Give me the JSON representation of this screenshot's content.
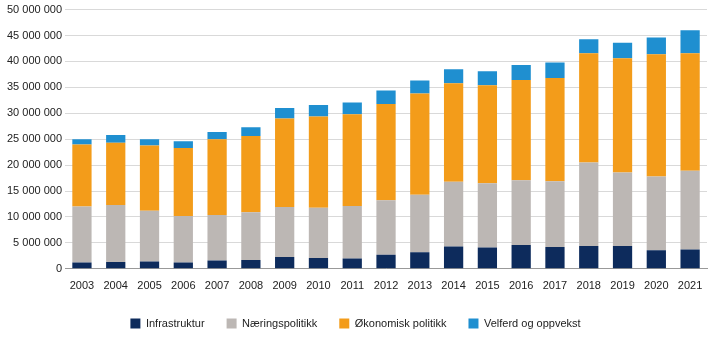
{
  "chart_data": {
    "type": "bar",
    "stacked": true,
    "grid": true,
    "legend": "bottom",
    "categories": [
      "2003",
      "2004",
      "2005",
      "2006",
      "2007",
      "2008",
      "2009",
      "2010",
      "2011",
      "2012",
      "2013",
      "2014",
      "2015",
      "2016",
      "2017",
      "2018",
      "2019",
      "2020",
      "2021"
    ],
    "series": [
      {
        "name": "Infrastruktur",
        "color": "#0d2b5c",
        "values": [
          1200000,
          1300000,
          1400000,
          1200000,
          1600000,
          1700000,
          2300000,
          2100000,
          2000000,
          2700000,
          3200000,
          4300000,
          4100000,
          4600000,
          4200000,
          4400000,
          4400000,
          3600000,
          3700000
        ]
      },
      {
        "name": "Næringspolitikk",
        "color": "#bcb7b4",
        "values": [
          10800000,
          11000000,
          9800000,
          9000000,
          8800000,
          9200000,
          9600000,
          9700000,
          10100000,
          10500000,
          11100000,
          12500000,
          12400000,
          12500000,
          12700000,
          16100000,
          14200000,
          14200000,
          15200000
        ]
      },
      {
        "name": "Økonomisk politikk",
        "color": "#f39c1a",
        "values": [
          12000000,
          12000000,
          12600000,
          13100000,
          14600000,
          14700000,
          17100000,
          17600000,
          17700000,
          18600000,
          19500000,
          19000000,
          18900000,
          19300000,
          19900000,
          21100000,
          22000000,
          23600000,
          22700000
        ]
      },
      {
        "name": "Velferd og oppvekst",
        "color": "#1f8fd0",
        "values": [
          1000000,
          1500000,
          1200000,
          1300000,
          1400000,
          1700000,
          2000000,
          2200000,
          2300000,
          2600000,
          2500000,
          2700000,
          2700000,
          2900000,
          3000000,
          2700000,
          3000000,
          3200000,
          4400000
        ]
      }
    ],
    "ylim": [
      0,
      50000000
    ],
    "yticks": [
      {
        "value": 0,
        "label": "0"
      },
      {
        "value": 5000000,
        "label": "5 000 000"
      },
      {
        "value": 10000000,
        "label": "10 000 000"
      },
      {
        "value": 15000000,
        "label": "15 000 000"
      },
      {
        "value": 20000000,
        "label": "20 000 000"
      },
      {
        "value": 25000000,
        "label": "25 000 000"
      },
      {
        "value": 30000000,
        "label": "30 000 000"
      },
      {
        "value": 35000000,
        "label": "35 000 000"
      },
      {
        "value": 40000000,
        "label": "40 000 000"
      },
      {
        "value": 45000000,
        "label": "45 000 000"
      },
      {
        "value": 50000000,
        "label": "50 000 000"
      }
    ]
  }
}
